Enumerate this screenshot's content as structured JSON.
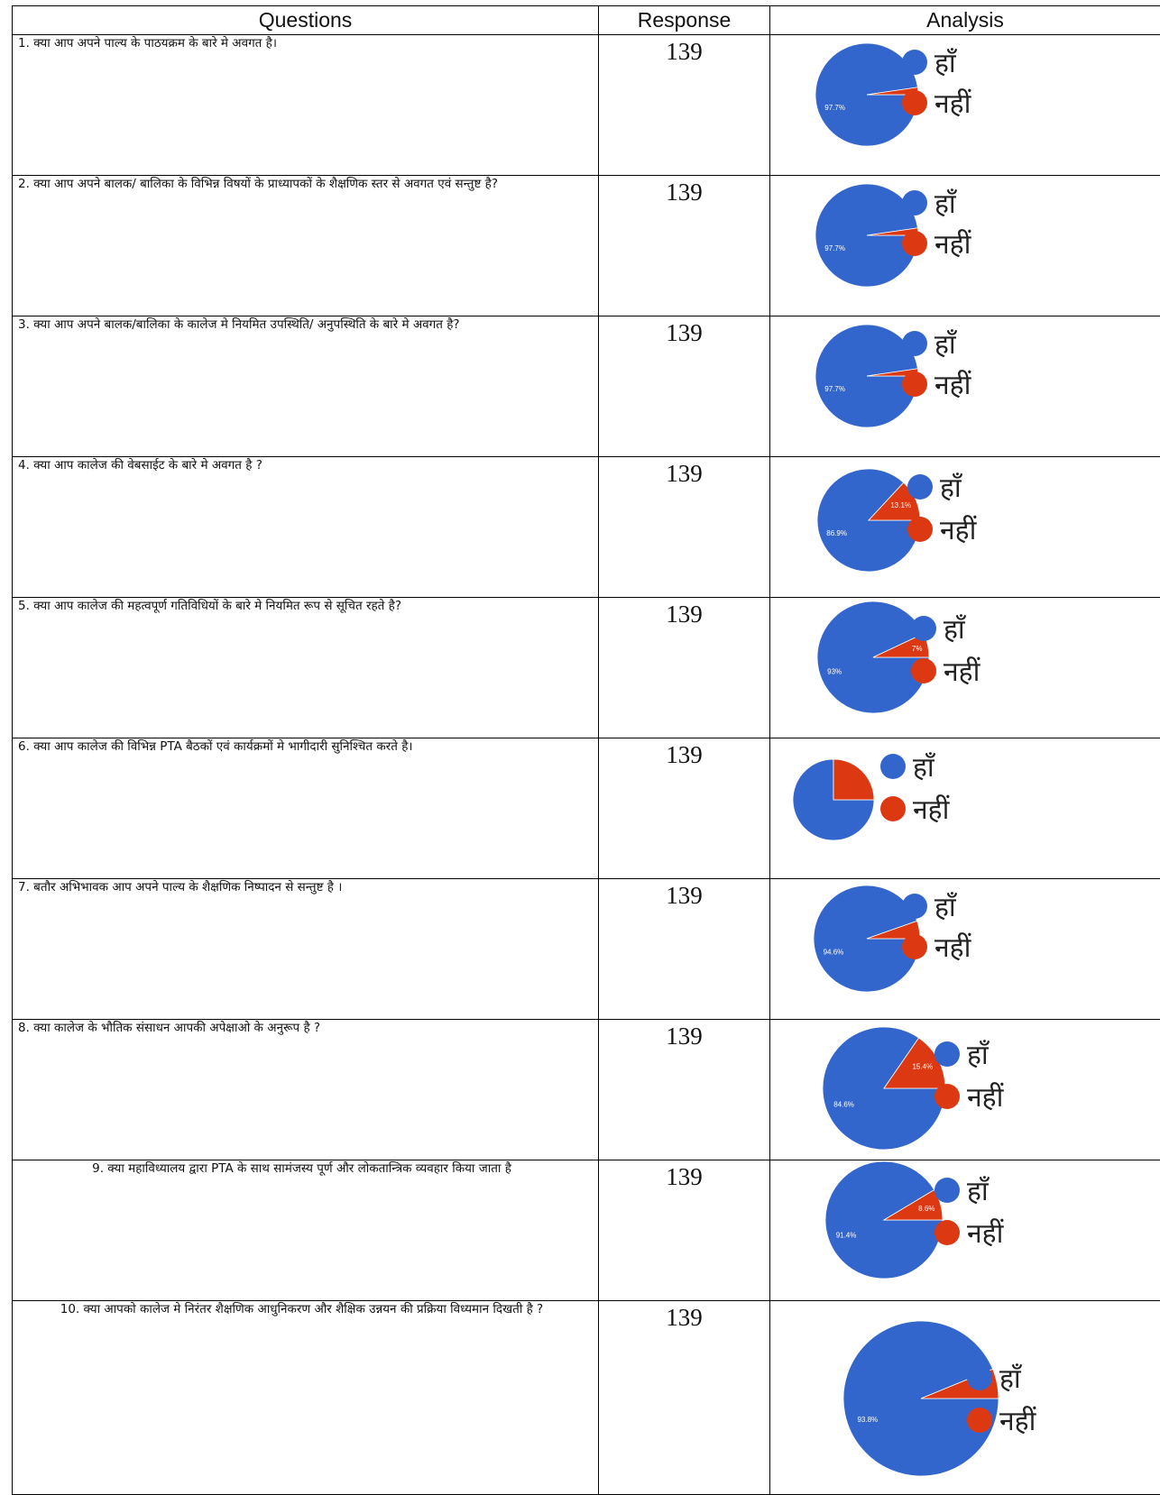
{
  "headers": {
    "questions": "Questions",
    "response": "Response",
    "analysis": "Analysis"
  },
  "colors": {
    "yes": "#3366cc",
    "no": "#dc3912"
  },
  "legend": {
    "yes": "हाँ",
    "no": "नहीं"
  },
  "rows": [
    {
      "question": "1. क्या आप अपने पाल्य के पाठयक्रम के बारे मे अवगत है।",
      "response": "139"
    },
    {
      "question": "2. क्या आप अपने बालक/ बालिका के विभिन्न विषयों के प्राध्यापकों के शैक्षणिक स्तर से अवगत एवं सन्तुष्ट है?",
      "response": "139"
    },
    {
      "question": "3. क्या आप अपने बालक/बालिका के कालेज मे नियमित उपस्थिति/ अनुपस्थिति के बारे मे अवगत है?",
      "response": "139"
    },
    {
      "question": "4. क्या आप कालेज की वेबसाईट के बारे मे अवगत है ?",
      "response": "139"
    },
    {
      "question": "5. क्या आप कालेज की महत्वपूर्ण गतिविधियों के बारे मे नियमित रूप से सूचित रहते है?",
      "response": "139"
    },
    {
      "question": "6. क्या आप कालेज की विभिन्न PTA बैठकों एवं कार्यक्रमों मे भागीदारी सुनिश्चित करते है।",
      "response": "139"
    },
    {
      "question": "7. बतौर अभिभावक आप अपने पाल्य के शैक्षणिक निष्पादन से सन्तुष्ट है ।",
      "response": "139"
    },
    {
      "question": "8. क्या कालेज के भौतिक संसाधन आपकी अपेक्षाओ के अनुरूप है ?",
      "response": "139"
    },
    {
      "question": "9. क्या महाविध्यालय द्वारा PTA के साथ सामंजस्य पूर्ण और लोकतान्त्रिक व्यवहार किया जाता है",
      "response": "139"
    },
    {
      "question": "10. क्या आपको कालेज मे निरंतर शैक्षणिक आधुनिकरण और शैक्षिक उन्नयन की प्रक्रिया विध्यमान दिखती है ?",
      "response": "139"
    }
  ],
  "chart_data": [
    {
      "type": "pie",
      "categories": [
        "हाँ",
        "नहीं"
      ],
      "values": [
        97.7,
        2.3
      ],
      "labels": [
        "97.7%",
        ""
      ]
    },
    {
      "type": "pie",
      "categories": [
        "हाँ",
        "नहीं"
      ],
      "values": [
        97.7,
        2.3
      ],
      "labels": [
        "97.7%",
        ""
      ]
    },
    {
      "type": "pie",
      "categories": [
        "हाँ",
        "नहीं"
      ],
      "values": [
        97.7,
        2.3
      ],
      "labels": [
        "97.7%",
        ""
      ]
    },
    {
      "type": "pie",
      "categories": [
        "हाँ",
        "नहीं"
      ],
      "values": [
        86.9,
        13.1
      ],
      "labels": [
        "86.9%",
        "13.1%"
      ]
    },
    {
      "type": "pie",
      "categories": [
        "हाँ",
        "नहीं"
      ],
      "values": [
        93,
        7
      ],
      "labels": [
        "93%",
        "7%"
      ]
    },
    {
      "type": "pie",
      "categories": [
        "हाँ",
        "नहीं"
      ],
      "values": [
        75,
        25
      ],
      "labels": [
        "",
        ""
      ]
    },
    {
      "type": "pie",
      "categories": [
        "हाँ",
        "नहीं"
      ],
      "values": [
        94.6,
        5.4
      ],
      "labels": [
        "94.6%",
        ""
      ]
    },
    {
      "type": "pie",
      "categories": [
        "हाँ",
        "नहीं"
      ],
      "values": [
        84.6,
        15.4
      ],
      "labels": [
        "84.6%",
        "15.4%"
      ]
    },
    {
      "type": "pie",
      "categories": [
        "हाँ",
        "नहीं"
      ],
      "values": [
        91.4,
        8.6
      ],
      "labels": [
        "91.4%",
        "8.6%"
      ]
    },
    {
      "type": "pie",
      "categories": [
        "हाँ",
        "नहीं"
      ],
      "values": [
        93.8,
        6.2
      ],
      "labels": [
        "93.8%",
        ""
      ]
    }
  ]
}
